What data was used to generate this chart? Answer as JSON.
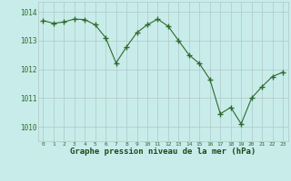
{
  "x": [
    0,
    1,
    2,
    3,
    4,
    5,
    6,
    7,
    8,
    9,
    10,
    11,
    12,
    13,
    14,
    15,
    16,
    17,
    18,
    19,
    20,
    21,
    22,
    23
  ],
  "y": [
    1013.7,
    1013.6,
    1013.65,
    1013.75,
    1013.73,
    1013.55,
    1013.1,
    1012.22,
    1012.78,
    1013.28,
    1013.55,
    1013.75,
    1013.5,
    1013.0,
    1012.5,
    1012.2,
    1011.65,
    1010.45,
    1010.68,
    1010.1,
    1011.0,
    1011.4,
    1011.75,
    1011.9
  ],
  "line_color": "#2d6a2d",
  "marker_color": "#2d6a2d",
  "bg_color": "#c8ecea",
  "grid_color": "#b0c8c8",
  "xlabel": "Graphe pression niveau de la mer (hPa)",
  "xlabel_color": "#1a4a1a",
  "ylim_min": 1009.5,
  "ylim_max": 1014.35,
  "yticks": [
    1010,
    1011,
    1012,
    1013,
    1014
  ],
  "xticks": [
    0,
    1,
    2,
    3,
    4,
    5,
    6,
    7,
    8,
    9,
    10,
    11,
    12,
    13,
    14,
    15,
    16,
    17,
    18,
    19,
    20,
    21,
    22,
    23
  ],
  "figsize": [
    3.2,
    2.0
  ],
  "dpi": 100
}
